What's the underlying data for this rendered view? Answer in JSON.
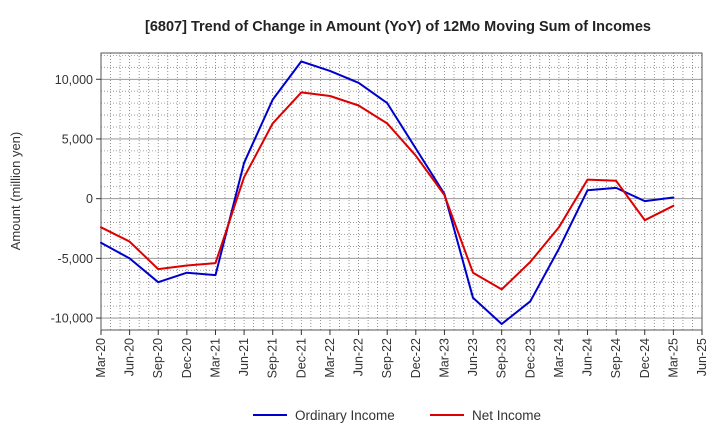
{
  "chart_data": {
    "type": "line",
    "title": "[6807]  Trend of Change in Amount (YoY) of 12Mo Moving Sum of Incomes",
    "xlabel": "",
    "ylabel": "Amount (million yen)",
    "ylim": [
      -11000,
      12200
    ],
    "yticks": [
      10000,
      5000,
      0,
      -5000,
      -10000
    ],
    "ytick_labels": [
      "10,000",
      "5,000",
      "0",
      "-5,000",
      "-10,000"
    ],
    "categories": [
      "Mar-20",
      "Jun-20",
      "Sep-20",
      "Dec-20",
      "Mar-21",
      "Jun-21",
      "Sep-21",
      "Dec-21",
      "Mar-22",
      "Jun-22",
      "Sep-22",
      "Dec-22",
      "Mar-23",
      "Jun-23",
      "Sep-23",
      "Dec-23",
      "Mar-24",
      "Jun-24",
      "Sep-24",
      "Dec-24",
      "Mar-25",
      "Jun-25"
    ],
    "grid": true,
    "legend_position": "bottom",
    "series": [
      {
        "name": "Ordinary Income",
        "color": "#0000cc",
        "values": [
          -3700,
          -5000,
          -7000,
          -6200,
          -6400,
          3000,
          8300,
          11500,
          10700,
          9700,
          8000,
          4200,
          400,
          -8300,
          -10500,
          -8600,
          -4200,
          700,
          900,
          -200,
          100,
          null
        ]
      },
      {
        "name": "Net Income",
        "color": "#dd0000",
        "values": [
          -2400,
          -3600,
          -5900,
          -5600,
          -5400,
          1800,
          6300,
          8900,
          8600,
          7800,
          6300,
          3600,
          300,
          -6200,
          -7600,
          -5300,
          -2400,
          1600,
          1500,
          -1800,
          -600,
          null
        ]
      }
    ]
  }
}
